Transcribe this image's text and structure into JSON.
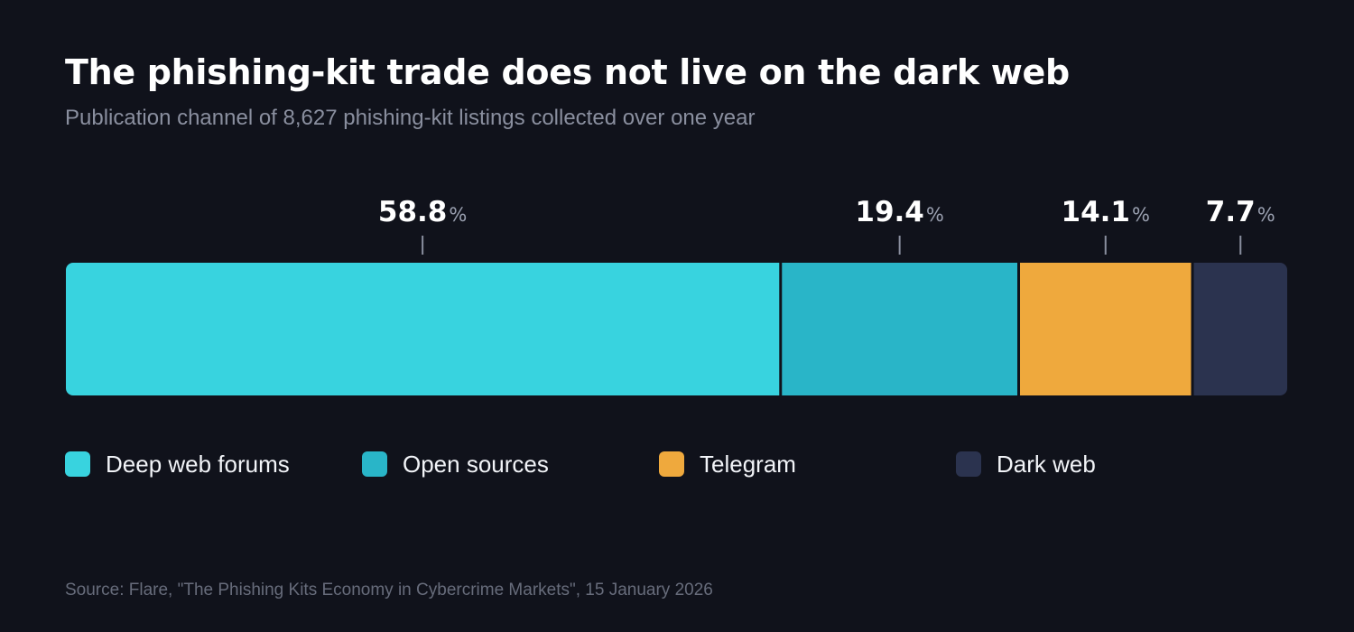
{
  "header": {
    "title": "The phishing-kit trade does not live on the dark web",
    "subtitle": "Publication channel of 8,627 phishing-kit listings collected over one year"
  },
  "chart_data": {
    "type": "bar",
    "orientation": "horizontal-stacked",
    "title": "The phishing-kit trade does not live on the dark web",
    "subtitle": "Publication channel of 8,627 phishing-kit listings collected over one year",
    "unit": "%",
    "categories": [
      "Deep web forums",
      "Open sources",
      "Telegram",
      "Dark web"
    ],
    "values": [
      58.8,
      19.4,
      14.1,
      7.7
    ],
    "value_labels": [
      "58.8",
      "19.4",
      "14.1",
      "7.7"
    ],
    "colors": [
      "#38d3df",
      "#29b5c8",
      "#efa93d",
      "#2b334f"
    ],
    "legend_position": "bottom",
    "grid": false
  },
  "legend": {
    "items": [
      {
        "label": "Deep web forums",
        "color": "#38d3df"
      },
      {
        "label": "Open sources",
        "color": "#29b5c8"
      },
      {
        "label": "Telegram",
        "color": "#efa93d"
      },
      {
        "label": "Dark web",
        "color": "#2b334f"
      }
    ]
  },
  "footer": {
    "source": "Source: Flare, \"The Phishing Kits Economy in Cybercrime Markets\", 15 January 2026"
  },
  "theme": {
    "background": "#10121b",
    "label_color": "#ffffff",
    "unit_color": "#9aa0b0",
    "tick_color": "#8a8f9f"
  }
}
